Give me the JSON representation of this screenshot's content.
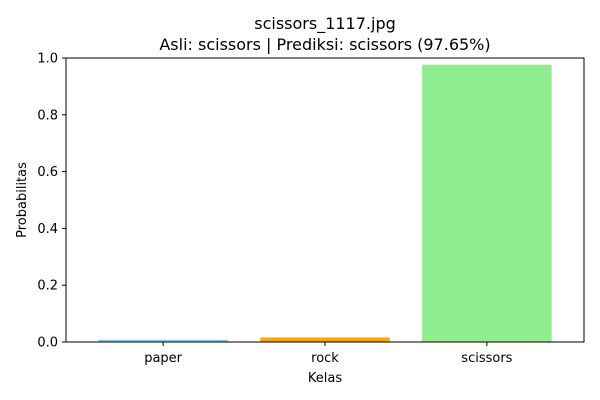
{
  "chart_data": {
    "type": "bar",
    "title": "scissors_1117.jpg",
    "subtitle": "Asli: scissors | Prediksi: scissors (97.65%)",
    "xlabel": "Kelas",
    "ylabel": "Probabilitas",
    "categories": [
      "paper",
      "rock",
      "scissors"
    ],
    "values": [
      0.008,
      0.016,
      0.9765
    ],
    "colors": [
      "#87ceeb",
      "#ffa500",
      "#90ee90"
    ],
    "ylim": [
      0,
      1.0
    ],
    "yticks": [
      0.0,
      0.2,
      0.4,
      0.6,
      0.8,
      1.0
    ],
    "ytick_labels": [
      "0.0",
      "0.2",
      "0.4",
      "0.6",
      "0.8",
      "1.0"
    ],
    "grid": false,
    "legend": "none"
  }
}
